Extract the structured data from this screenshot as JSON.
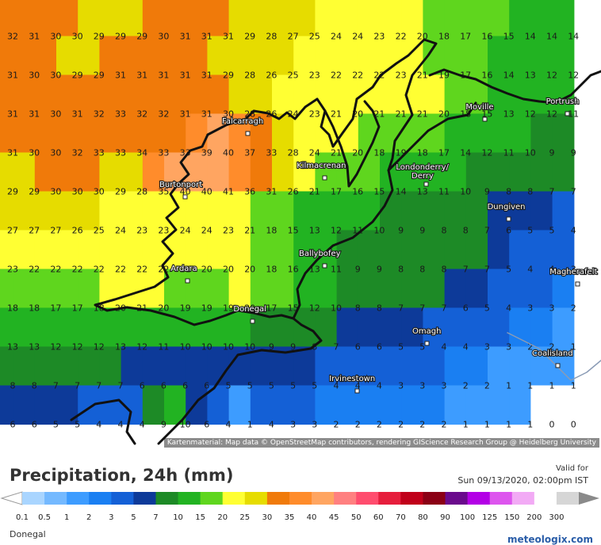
{
  "map": {
    "attribution": "Kartenmaterial: Map data © OpenStreetMap contributors, rendering GIScience Research Group @ Heidelberg University",
    "grid": [
      [
        32,
        31,
        30,
        30,
        29,
        29,
        29,
        30,
        31,
        31,
        31,
        29,
        28,
        27,
        25,
        24,
        24,
        23,
        22,
        20,
        18,
        17,
        16,
        15,
        14,
        14,
        14
      ],
      [
        31,
        30,
        30,
        29,
        29,
        31,
        31,
        31,
        31,
        31,
        29,
        28,
        26,
        25,
        23,
        22,
        22,
        22,
        23,
        21,
        19,
        17,
        16,
        14,
        13,
        12,
        12
      ],
      [
        31,
        31,
        30,
        31,
        32,
        33,
        32,
        32,
        31,
        31,
        30,
        28,
        26,
        24,
        23,
        21,
        20,
        21,
        21,
        21,
        20,
        18,
        15,
        13,
        12,
        12,
        11
      ],
      [
        31,
        30,
        30,
        32,
        33,
        33,
        34,
        33,
        33,
        39,
        40,
        37,
        33,
        28,
        24,
        21,
        20,
        18,
        19,
        18,
        17,
        14,
        12,
        11,
        10,
        9,
        9
      ],
      [
        29,
        29,
        30,
        30,
        30,
        29,
        28,
        35,
        40,
        40,
        41,
        36,
        31,
        26,
        21,
        17,
        16,
        15,
        14,
        13,
        11,
        10,
        9,
        8,
        8,
        7,
        7
      ],
      [
        27,
        27,
        27,
        26,
        25,
        24,
        23,
        23,
        24,
        24,
        23,
        21,
        18,
        15,
        13,
        12,
        11,
        10,
        9,
        9,
        8,
        8,
        7,
        6,
        5,
        5,
        4
      ],
      [
        23,
        22,
        22,
        22,
        22,
        22,
        22,
        22,
        21,
        20,
        20,
        20,
        18,
        16,
        13,
        11,
        9,
        9,
        8,
        8,
        8,
        7,
        7,
        5,
        4,
        4,
        3
      ],
      [
        18,
        18,
        17,
        17,
        18,
        20,
        21,
        20,
        19,
        19,
        19,
        20,
        17,
        15,
        12,
        10,
        8,
        8,
        7,
        7,
        7,
        6,
        5,
        4,
        3,
        3,
        2
      ],
      [
        13,
        13,
        12,
        12,
        12,
        13,
        12,
        11,
        10,
        10,
        10,
        10,
        9,
        9,
        8,
        7,
        6,
        6,
        5,
        5,
        4,
        4,
        3,
        3,
        2,
        2,
        1
      ],
      [
        8,
        8,
        7,
        7,
        7,
        7,
        6,
        6,
        6,
        6,
        5,
        5,
        5,
        5,
        5,
        4,
        4,
        4,
        3,
        3,
        3,
        2,
        2,
        1,
        1,
        1,
        1
      ],
      [
        6,
        6,
        5,
        5,
        4,
        4,
        4,
        9,
        10,
        6,
        4,
        1,
        4,
        3,
        3,
        2,
        2,
        2,
        2,
        2,
        2,
        1,
        1,
        1,
        1,
        0,
        0
      ]
    ],
    "towns": [
      {
        "name": "Falcarragh",
        "lon": 308,
        "lat": 158
      },
      {
        "name": "Kilmacrenan",
        "lon": 405,
        "lat": 214
      },
      {
        "name": "Burtonport",
        "lon": 229,
        "lat": 238
      },
      {
        "name": "Londonderry/\nDerry",
        "lon": 533,
        "lat": 222
      },
      {
        "name": "Moville",
        "lon": 607,
        "lat": 140
      },
      {
        "name": "Portrush",
        "lon": 711,
        "lat": 133
      },
      {
        "name": "Dungiven",
        "lon": 637,
        "lat": 266
      },
      {
        "name": "Ballybofey",
        "lon": 405,
        "lat": 325
      },
      {
        "name": "Ardara",
        "lon": 232,
        "lat": 344
      },
      {
        "name": "Magherafelt",
        "lon": 724,
        "lat": 348
      },
      {
        "name": "Donegal",
        "lon": 314,
        "lat": 395
      },
      {
        "name": "Omagh",
        "lon": 534,
        "lat": 423
      },
      {
        "name": "Coalisland",
        "lon": 699,
        "lat": 451
      },
      {
        "name": "Irvinestown",
        "lon": 446,
        "lat": 483
      }
    ]
  },
  "legend": {
    "title": "Precipitation, 24h (mm)",
    "valid_label": "Valid for",
    "valid_time": "Sun 09/13/2020, 02:00pm IST",
    "region": "Donegal",
    "brand": "meteologix.com",
    "stops": [
      {
        "label": "0.1",
        "color": "#a9d5ff"
      },
      {
        "label": "0.5",
        "color": "#74b9ff"
      },
      {
        "label": "1",
        "color": "#3d9cff"
      },
      {
        "label": "2",
        "color": "#1a7ff2"
      },
      {
        "label": "3",
        "color": "#1460d6"
      },
      {
        "label": "5",
        "color": "#0d3a99"
      },
      {
        "label": "7",
        "color": "#1d8a26"
      },
      {
        "label": "10",
        "color": "#22b322"
      },
      {
        "label": "15",
        "color": "#5fd61e"
      },
      {
        "label": "20",
        "color": "#ffff33"
      },
      {
        "label": "25",
        "color": "#e6dc00"
      },
      {
        "label": "30",
        "color": "#f07a0a"
      },
      {
        "label": "35",
        "color": "#ff8c2b"
      },
      {
        "label": "40",
        "color": "#ffa561"
      },
      {
        "label": "45",
        "color": "#ff8080"
      },
      {
        "label": "50",
        "color": "#ff4d6e"
      },
      {
        "label": "60",
        "color": "#e61e3c"
      },
      {
        "label": "70",
        "color": "#c0001a"
      },
      {
        "label": "80",
        "color": "#8b0015"
      },
      {
        "label": "90",
        "color": "#6a0a8c"
      },
      {
        "label": "100",
        "color": "#b300e6"
      },
      {
        "label": "125",
        "color": "#dd55ee"
      },
      {
        "label": "150",
        "color": "#f2aaf5"
      },
      {
        "label": "200",
        "color": "#ffffff"
      },
      {
        "label": "300",
        "color": "#d6d6d6"
      }
    ]
  }
}
